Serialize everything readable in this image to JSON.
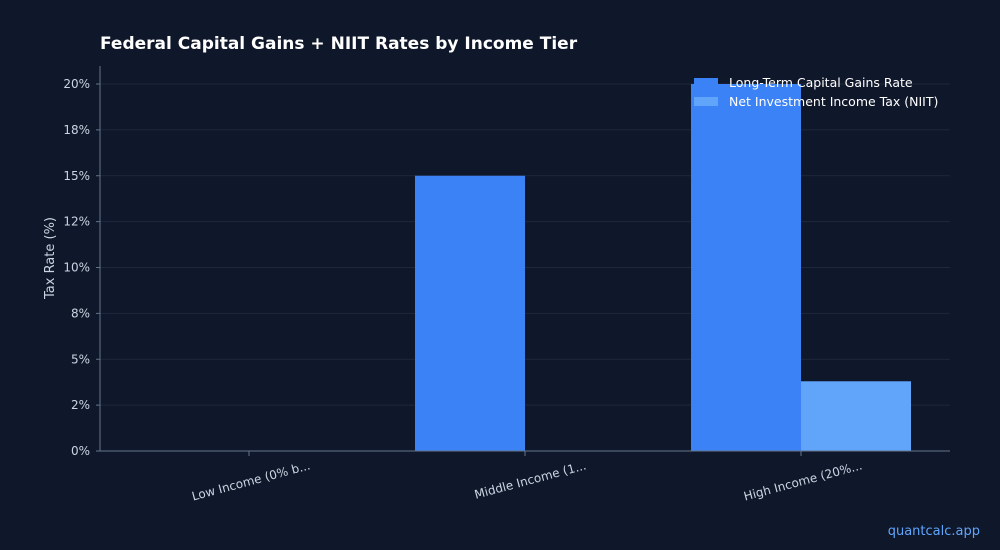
{
  "chart_data": {
    "type": "bar",
    "title": "Federal Capital Gains + NIIT Rates by Income Tier",
    "xlabel": "",
    "ylabel": "Tax Rate (%)",
    "categories": [
      "Low Income (0% b...",
      "Middle Income (1...",
      "High Income (20%..."
    ],
    "series": [
      {
        "name": "Long-Term Capital Gains Rate",
        "values": [
          0,
          15,
          20
        ],
        "color": "#3b82f6"
      },
      {
        "name": "Net Investment Income Tax (NIIT)",
        "values": [
          0,
          0,
          3.8
        ],
        "color": "#60a5fa"
      }
    ],
    "ylim": [
      0,
      21
    ],
    "yticks": [
      0,
      2.5,
      5,
      7.5,
      10,
      12.5,
      15,
      17.5,
      20
    ],
    "ytick_labels": [
      "0%",
      "2%",
      "5%",
      "8%",
      "10%",
      "12%",
      "15%",
      "18%",
      "20%"
    ],
    "grid": true,
    "legend_position": "top-right"
  },
  "watermark": "quantcalc.app",
  "colors": {
    "background": "#0f172a",
    "grid": "#1e293b",
    "axis": "#64748b",
    "text": "#cbd5e1",
    "title": "#ffffff",
    "watermark": "#60a5fa"
  }
}
